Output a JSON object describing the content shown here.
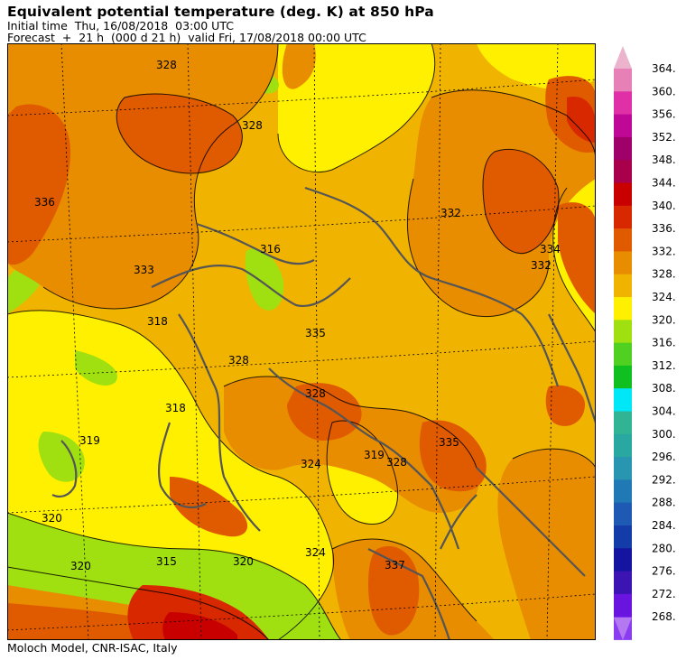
{
  "header": {
    "title": "Equivalent potential temperature (deg. K) at 850 hPa",
    "initial_time": "Initial time  Thu, 16/08/2018  03:00 UTC",
    "forecast": "Forecast  +  21 h  (000 d 21 h)  valid Fri, 17/08/2018 00:00 UTC"
  },
  "footer": {
    "credit": "Moloch Model, CNR-ISAC, Italy"
  },
  "colorbar": {
    "unit": "deg. K",
    "levels": [
      {
        "value": "268.",
        "color": "#8a3cf0"
      },
      {
        "value": "272.",
        "color": "#6a14e0"
      },
      {
        "value": "276.",
        "color": "#3c14b4"
      },
      {
        "value": "280.",
        "color": "#1414a0"
      },
      {
        "value": "284.",
        "color": "#143ca8"
      },
      {
        "value": "288.",
        "color": "#1e5ab4"
      },
      {
        "value": "292.",
        "color": "#2078b4"
      },
      {
        "value": "296.",
        "color": "#2896b0"
      },
      {
        "value": "300.",
        "color": "#28a8a0"
      },
      {
        "value": "304.",
        "color": "#30b494"
      },
      {
        "value": "308.",
        "color": "#00e8f8"
      },
      {
        "value": "312.",
        "color": "#10c020"
      },
      {
        "value": "316.",
        "color": "#50d020"
      },
      {
        "value": "320.",
        "color": "#a0e010"
      },
      {
        "value": "324.",
        "color": "#fff000"
      },
      {
        "value": "328.",
        "color": "#f0b400"
      },
      {
        "value": "332.",
        "color": "#e88c00"
      },
      {
        "value": "336.",
        "color": "#e05a00"
      },
      {
        "value": "340.",
        "color": "#d82800"
      },
      {
        "value": "344.",
        "color": "#c80000"
      },
      {
        "value": "348.",
        "color": "#a8004a"
      },
      {
        "value": "352.",
        "color": "#a0006a"
      },
      {
        "value": "356.",
        "color": "#c00896"
      },
      {
        "value": "360.",
        "color": "#e030a8"
      },
      {
        "value": "364.",
        "color": "#e880b8"
      }
    ],
    "top_triangle_color": "#ecb4cc",
    "bottom_triangle_color": "#b478f0"
  },
  "map": {
    "contour_labels": [
      "328",
      "328",
      "336",
      "316",
      "333",
      "318",
      "328",
      "335",
      "332",
      "334",
      "332",
      "328",
      "335",
      "319",
      "328",
      "337",
      "324",
      "319",
      "320",
      "320",
      "315",
      "320",
      "324",
      "318"
    ]
  }
}
